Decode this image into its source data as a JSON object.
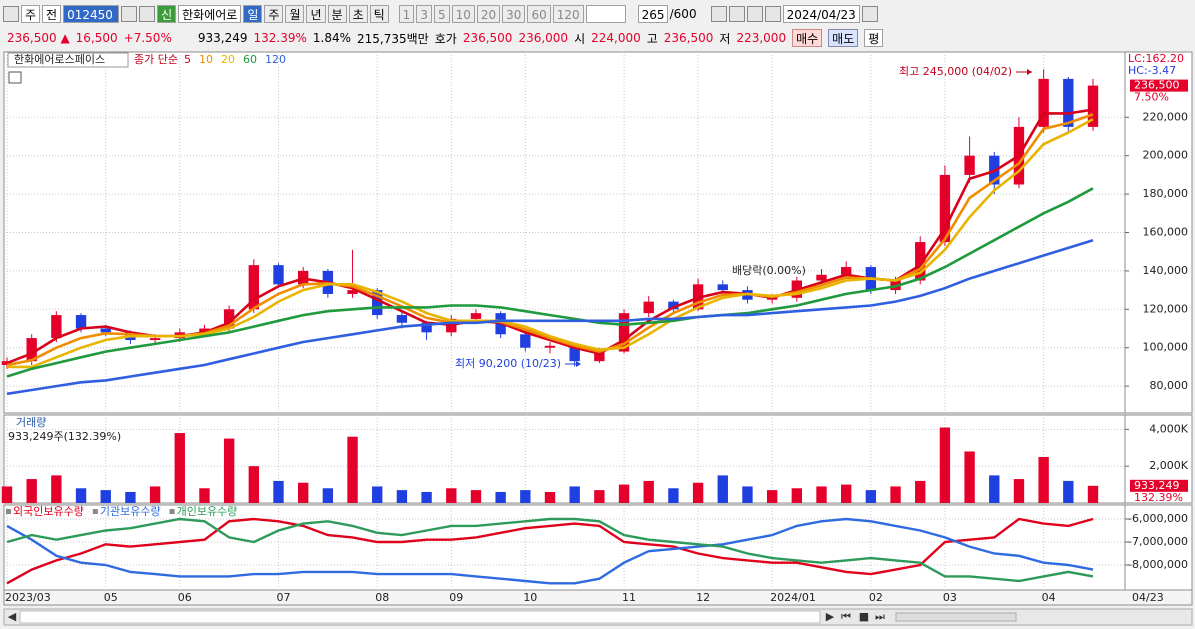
{
  "toolbar": {
    "period_select": "주",
    "compare": "전",
    "code": "012450",
    "badge": "신",
    "name": "한화에어로",
    "periods": [
      "일",
      "주",
      "월",
      "년",
      "분",
      "초",
      "틱"
    ],
    "intervals": [
      "1",
      "3",
      "5",
      "10",
      "20",
      "30",
      "60",
      "120"
    ],
    "count": "265",
    "max": "/600",
    "date": "2024/04/23"
  },
  "info_bar": {
    "price": "236,500 ▲",
    "change": "16,500",
    "change_pct": "+7.50%",
    "volume": "933,249",
    "volume_ratio": "132.39%",
    "turnover": "1.84%",
    "amount": "215,735백만",
    "quote_label": "호가",
    "ask": "236,500",
    "bid": "236,000",
    "open_label": "시",
    "open": "224,000",
    "high_label": "고",
    "high": "236,500",
    "low_label": "저",
    "low": "223,000",
    "buy": "매수",
    "sell": "매도",
    "avg": "평"
  },
  "chart_data": [
    {
      "type": "candlestick",
      "title": "한화에어로스페이스",
      "ma_label": "종가 단순",
      "lc": "LC:162.20",
      "hc": "HC:-3.47",
      "annotations": [
        "최고 245,000 (04/02)",
        "최저 90,200 (10/23)",
        "배당락(0.00%)"
      ],
      "up_color": "#e4002b",
      "down_color": "#1f3fe0",
      "open": [
        91000,
        93000,
        105000,
        117000,
        110000,
        108000,
        104000,
        105000,
        108000,
        110000,
        120000,
        143000,
        133000,
        140000,
        128000,
        130000,
        117000,
        113000,
        108000,
        115000,
        118000,
        107000,
        100000,
        101000,
        93000,
        98000,
        118000,
        124000,
        120000,
        133000,
        130000,
        125000,
        126000,
        135000,
        138000,
        142000,
        130000,
        135000,
        155000,
        190000,
        200000,
        185000,
        215000,
        240000,
        215000
      ],
      "high": [
        95000,
        107000,
        119000,
        118000,
        112000,
        109000,
        107000,
        110000,
        112000,
        122000,
        146000,
        144000,
        142000,
        141000,
        151000,
        131000,
        119000,
        114000,
        117000,
        120000,
        119000,
        109000,
        103000,
        102000,
        100000,
        120000,
        127000,
        125000,
        136000,
        135000,
        132000,
        128000,
        137000,
        141000,
        145000,
        143000,
        137000,
        158000,
        195000,
        210000,
        202000,
        220000,
        245000,
        241000,
        240000
      ],
      "low": [
        89000,
        91000,
        103000,
        108000,
        106000,
        102000,
        102000,
        103000,
        106000,
        108000,
        118000,
        131000,
        131000,
        126000,
        126000,
        115000,
        110000,
        104000,
        106000,
        113000,
        105000,
        98000,
        97000,
        90200,
        92000,
        97000,
        116000,
        118000,
        119000,
        128000,
        123000,
        123000,
        124000,
        133000,
        136000,
        128000,
        128000,
        133000,
        153000,
        186000,
        180000,
        183000,
        212000,
        212000,
        213000
      ],
      "close": [
        93000,
        105000,
        117000,
        110000,
        108000,
        104000,
        105000,
        108000,
        110000,
        120000,
        143000,
        133000,
        140000,
        128000,
        130000,
        117000,
        113000,
        108000,
        115000,
        118000,
        107000,
        100000,
        101000,
        93000,
        98000,
        118000,
        124000,
        120000,
        133000,
        130000,
        125000,
        126000,
        135000,
        138000,
        142000,
        130000,
        135000,
        155000,
        190000,
        200000,
        185000,
        215000,
        240000,
        215000,
        236500
      ],
      "series": [
        {
          "name": "5",
          "color": "#d9001b",
          "values": [
            92000,
            97000,
            105000,
            110000,
            111000,
            108000,
            106000,
            106000,
            108000,
            113000,
            125000,
            132000,
            136000,
            134000,
            131000,
            125000,
            119000,
            113000,
            112000,
            114000,
            113000,
            108000,
            104000,
            100000,
            97000,
            104000,
            114000,
            121000,
            126000,
            129000,
            128000,
            126000,
            130000,
            134000,
            138000,
            136000,
            135000,
            143000,
            162000,
            188000,
            192000,
            200000,
            222000,
            222000,
            224000
          ]
        },
        {
          "name": "10",
          "color": "#f08c00",
          "values": [
            91000,
            93500,
            100000,
            105000,
            107500,
            107000,
            106000,
            106000,
            107500,
            111500,
            120500,
            128000,
            133000,
            133500,
            132000,
            127000,
            121500,
            115500,
            113000,
            114000,
            113500,
            109500,
            105000,
            101000,
            98000,
            102000,
            110500,
            118000,
            123500,
            127500,
            128000,
            126500,
            129000,
            132500,
            136500,
            136000,
            135000,
            141000,
            156500,
            178000,
            187000,
            196000,
            214000,
            217000,
            221500
          ]
        },
        {
          "name": "20",
          "color": "#e8b400",
          "values": [
            90000,
            90000,
            95000,
            100000,
            104000,
            106000,
            106000,
            106000,
            107000,
            110000,
            116000,
            124000,
            130000,
            133000,
            133000,
            129000,
            124000,
            118000,
            114000,
            114000,
            114000,
            111000,
            106000,
            102000,
            99000,
            100000,
            107000,
            115000,
            121000,
            126000,
            128000,
            127000,
            128000,
            131000,
            135000,
            136000,
            135000,
            139000,
            151000,
            168000,
            182000,
            192000,
            206000,
            212000,
            219000
          ]
        },
        {
          "name": "60",
          "color": "#1f9a3c",
          "values": [
            85000,
            89000,
            92000,
            95000,
            98000,
            100000,
            102000,
            104000,
            106000,
            108000,
            111000,
            114000,
            117000,
            119000,
            120000,
            121000,
            121000,
            121000,
            122000,
            122000,
            121000,
            119000,
            117000,
            115000,
            113000,
            112000,
            113000,
            114000,
            116000,
            117000,
            118000,
            120000,
            122000,
            125000,
            128000,
            130000,
            132000,
            136000,
            142000,
            149000,
            156000,
            163000,
            170000,
            176000,
            183000
          ]
        },
        {
          "name": "120",
          "color": "#2f5fe0",
          "values": [
            76000,
            78000,
            80000,
            82000,
            83000,
            85000,
            87000,
            89000,
            91000,
            94000,
            97000,
            100000,
            103000,
            105000,
            107000,
            109000,
            111000,
            112000,
            113000,
            113000,
            114000,
            114000,
            114000,
            114000,
            114000,
            114000,
            115000,
            115000,
            116000,
            117000,
            117000,
            118000,
            119000,
            120000,
            121000,
            122000,
            124000,
            127000,
            131000,
            136000,
            140000,
            144000,
            148000,
            152000,
            156000
          ]
        }
      ],
      "last_tag": {
        "value": 236500,
        "label": "236,500"
      },
      "change_tag": "7.50%",
      "ylim": [
        66000,
        254000
      ],
      "yticks": [
        {
          "value": 80000,
          "label": "80,000"
        },
        {
          "value": 100000,
          "label": "100,000"
        },
        {
          "value": 120000,
          "label": "120,000"
        },
        {
          "value": 140000,
          "label": "140,000"
        },
        {
          "value": 160000,
          "label": "160,000"
        },
        {
          "value": 180000,
          "label": "180,000"
        },
        {
          "value": 200000,
          "label": "200,000"
        },
        {
          "value": 220000,
          "label": "220,000"
        }
      ],
      "grid": true
    },
    {
      "type": "bar",
      "title": "거래량",
      "subtitle": "933,249주(132.39%)",
      "up_color": "#e4002b",
      "down_color": "#1f3fe0",
      "values": [
        900,
        1300,
        1500,
        800,
        700,
        600,
        900,
        3800,
        800,
        3500,
        2000,
        1200,
        1100,
        800,
        3600,
        900,
        700,
        600,
        800,
        700,
        600,
        700,
        600,
        900,
        700,
        1000,
        1200,
        800,
        1100,
        1500,
        900,
        700,
        800,
        900,
        1000,
        700,
        900,
        1200,
        4100,
        2800,
        1500,
        1300,
        2500,
        1200,
        933.249
      ],
      "last_tag": {
        "value": 933.249,
        "label": "933,249"
      },
      "ratio_tag": "132.39%",
      "ylim": [
        0,
        4780
      ],
      "yticks": [
        {
          "value": 2000,
          "label": "2,000K"
        },
        {
          "value": 4000,
          "label": "4,000K"
        }
      ],
      "grid": true
    },
    {
      "type": "line",
      "categories": [
        "2023/03",
        null,
        null,
        null,
        "05",
        null,
        null,
        "06",
        null,
        null,
        null,
        "07",
        null,
        null,
        null,
        "08",
        null,
        null,
        "09",
        null,
        null,
        "10",
        null,
        null,
        null,
        "11",
        null,
        null,
        "12",
        null,
        null,
        "2024/01",
        null,
        null,
        null,
        "02",
        null,
        null,
        "03",
        null,
        null,
        null,
        "04",
        null,
        null
      ],
      "end_label": "04/23",
      "series": [
        {
          "name": "외국인보유수량",
          "color": "#e0001b",
          "values": [
            -8800000,
            -8200000,
            -7800000,
            -7500000,
            -7100000,
            -7200000,
            -7100000,
            -7000000,
            -6900000,
            -6100000,
            -6000000,
            -6100000,
            -6300000,
            -6700000,
            -6800000,
            -7000000,
            -7000000,
            -6900000,
            -6900000,
            -6800000,
            -6600000,
            -6400000,
            -6300000,
            -6200000,
            -6300000,
            -7000000,
            -7100000,
            -7200000,
            -7500000,
            -7700000,
            -7800000,
            -7900000,
            -7900000,
            -8100000,
            -8300000,
            -8400000,
            -8200000,
            -8000000,
            -7000000,
            -6900000,
            -6800000,
            -6000000,
            -6200000,
            -6300000,
            -6000000
          ]
        },
        {
          "name": "기관보유수량",
          "color": "#2f6be0",
          "values": [
            -6300000,
            -6900000,
            -7600000,
            -7900000,
            -8000000,
            -8300000,
            -8400000,
            -8500000,
            -8500000,
            -8500000,
            -8400000,
            -8400000,
            -8300000,
            -8300000,
            -8300000,
            -8400000,
            -8400000,
            -8400000,
            -8400000,
            -8500000,
            -8600000,
            -8700000,
            -8800000,
            -8800000,
            -8600000,
            -7900000,
            -7400000,
            -7300000,
            -7200000,
            -7100000,
            -6900000,
            -6700000,
            -6300000,
            -6100000,
            -6000000,
            -6100000,
            -6300000,
            -6500000,
            -6800000,
            -7200000,
            -7500000,
            -7600000,
            -7900000,
            -8000000,
            -8200000
          ]
        },
        {
          "name": "개인보유수량",
          "color": "#2e9a5a",
          "values": [
            -7000000,
            -6700000,
            -6900000,
            -6700000,
            -6500000,
            -6400000,
            -6200000,
            -6000000,
            -6100000,
            -6800000,
            -7000000,
            -6500000,
            -6200000,
            -6100000,
            -6300000,
            -6600000,
            -6700000,
            -6500000,
            -6300000,
            -6300000,
            -6200000,
            -6100000,
            -6000000,
            -6000000,
            -6100000,
            -6700000,
            -6900000,
            -7000000,
            -7100000,
            -7200000,
            -7500000,
            -7700000,
            -7800000,
            -7900000,
            -7800000,
            -7700000,
            -7800000,
            -7900000,
            -8500000,
            -8500000,
            -8600000,
            -8700000,
            -8500000,
            -8300000,
            -8500000
          ]
        }
      ],
      "ylim": [
        -9090000,
        -5390000
      ],
      "yticks": [
        {
          "value": -8000000,
          "label": "-8,000,000"
        },
        {
          "value": -7000000,
          "label": "-7,000,000"
        },
        {
          "value": -6000000,
          "label": "-6,000,000"
        }
      ],
      "grid": true
    }
  ]
}
